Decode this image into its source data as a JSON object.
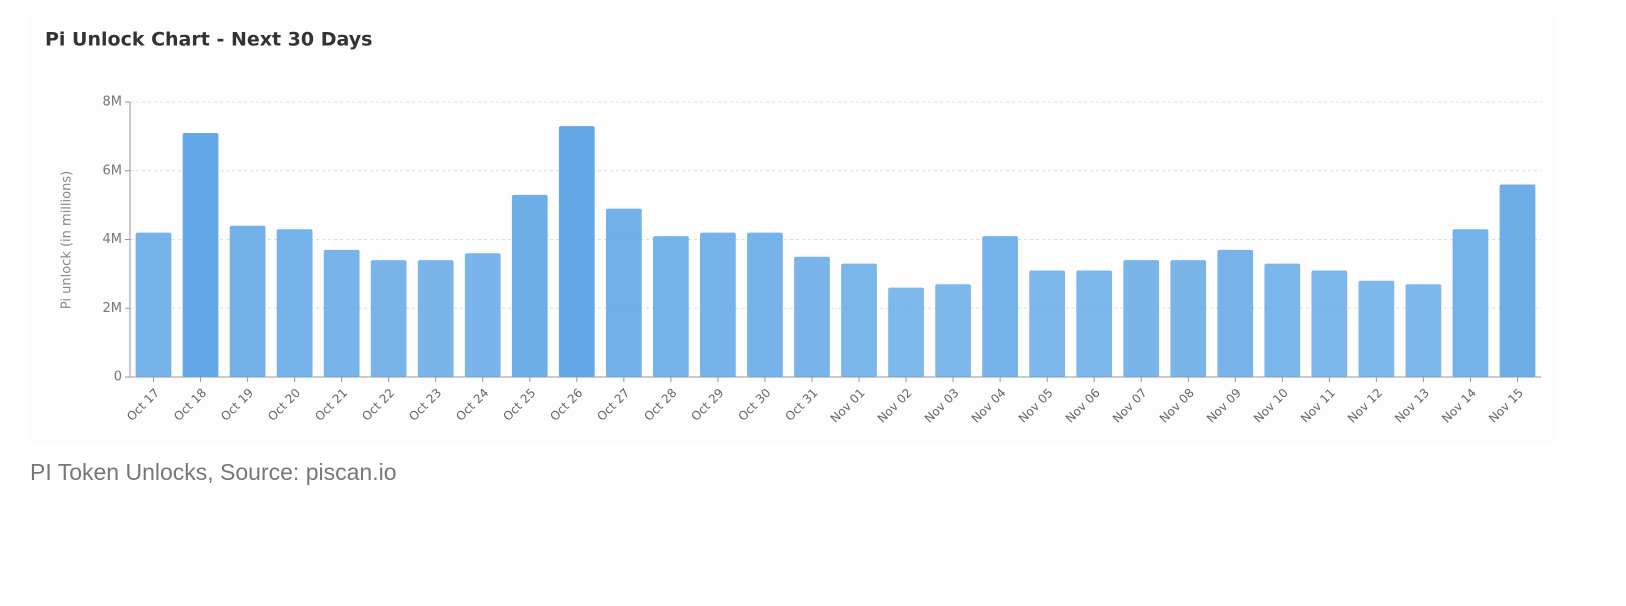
{
  "chart_data": {
    "type": "bar",
    "title": "Pi Unlock Chart - Next 30 Days",
    "ylabel": "Pi unlock (in millions)",
    "categories": [
      "Oct 17",
      "Oct 18",
      "Oct 19",
      "Oct 20",
      "Oct 21",
      "Oct 22",
      "Oct 23",
      "Oct 24",
      "Oct 25",
      "Oct 26",
      "Oct 27",
      "Oct 28",
      "Oct 29",
      "Oct 30",
      "Oct 31",
      "Nov 01",
      "Nov 02",
      "Nov 03",
      "Nov 04",
      "Nov 05",
      "Nov 06",
      "Nov 07",
      "Nov 08",
      "Nov 09",
      "Nov 10",
      "Nov 11",
      "Nov 12",
      "Nov 13",
      "Nov 14",
      "Nov 15"
    ],
    "values": [
      4.2,
      7.1,
      4.4,
      4.3,
      3.7,
      3.4,
      3.4,
      3.6,
      5.3,
      7.3,
      4.9,
      4.1,
      4.2,
      4.2,
      3.5,
      3.3,
      2.6,
      2.7,
      4.1,
      3.1,
      3.1,
      3.4,
      3.4,
      3.7,
      3.3,
      3.1,
      2.8,
      2.7,
      4.3,
      5.6
    ],
    "color": "#5ea6e6",
    "ylim": [
      0,
      8
    ],
    "yticks": [
      0,
      {
        "value": 2,
        "label": "2M"
      },
      {
        "value": 4,
        "label": "4M"
      },
      {
        "value": 6,
        "label": "6M"
      },
      {
        "value": 8,
        "label": "8M"
      }
    ],
    "grid": true
  },
  "caption": "PI Token Unlocks, Source: piscan.io"
}
